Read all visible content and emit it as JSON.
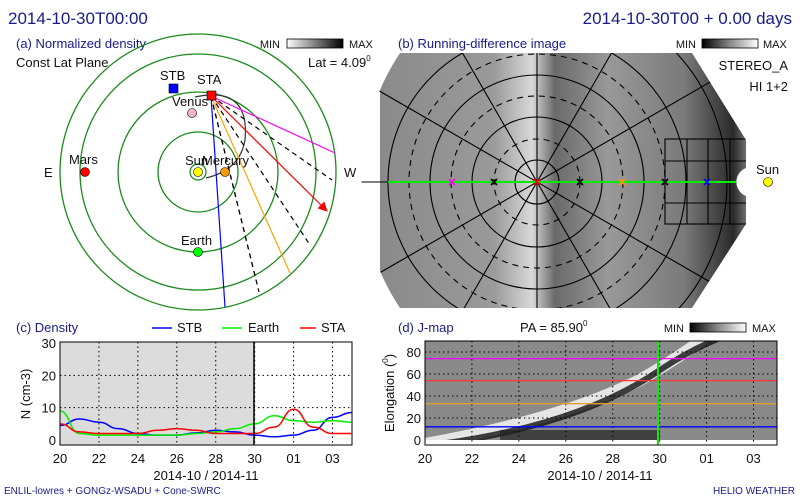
{
  "header": {
    "left_time": "2014-10-30T00:00",
    "right_time": "2014-10-30T00 + 0.00 days"
  },
  "panel_a": {
    "title": "(a) Normalized density",
    "subtitle": "Const Lat Plane",
    "colorbar_min": "MIN",
    "colorbar_max": "MAX",
    "lat_label": "Lat = 4.09",
    "lat_sup": "0",
    "east": "E",
    "west": "W",
    "bodies": {
      "stb": "STB",
      "sta": "STA",
      "venus": "Venus",
      "sun": "Sun",
      "mercury": "Mercury",
      "mars": "Mars",
      "earth": "Earth"
    },
    "colors": {
      "orbit": "#1a8a1a",
      "stb": "#0000ff",
      "sta": "#ff0000",
      "venus": "#f4b6c2",
      "sun": "#ffff00",
      "mercury": "#ff9900",
      "mars": "#ff0000",
      "earth": "#00ff00",
      "magenta": "#ff00ff",
      "orange": "#ffa500"
    }
  },
  "panel_b": {
    "title": "(b) Running-difference image",
    "colorbar_min": "MIN",
    "colorbar_max": "MAX",
    "spacecraft": "STEREO_A",
    "instrument": "HI 1+2",
    "sun_label": "Sun"
  },
  "chart_data": [
    {
      "type": "line",
      "title": "(c) Density",
      "ylabel": "N (cm-3)",
      "ylabel_main": "N (cm",
      "ylabel_sup": "-3",
      "ylabel_end": ")",
      "xlabel": "2014-10 / 2014-11",
      "x_tick_labels": [
        "20",
        "22",
        "24",
        "26",
        "28",
        "30",
        "01",
        "03"
      ],
      "y_tick_labels": [
        "0",
        "10",
        "20",
        "30"
      ],
      "ylim": [
        0,
        30
      ],
      "xlim": [
        "2014-10-20",
        "2014-11-04"
      ],
      "grid": true,
      "legend_position": "top",
      "current_time": "2014-10-30",
      "shaded_past": true,
      "series": [
        {
          "name": "STB",
          "color": "#0000ff",
          "x": [
            "2014-10-20",
            "2014-10-21",
            "2014-10-22",
            "2014-10-23",
            "2014-10-24",
            "2014-10-25",
            "2014-10-26",
            "2014-10-27",
            "2014-10-28",
            "2014-10-29",
            "2014-10-30",
            "2014-10-31",
            "2014-11-01",
            "2014-11-02",
            "2014-11-03",
            "2014-11-04"
          ],
          "y": [
            4.5,
            6.5,
            5.5,
            3.5,
            2,
            1.5,
            1.5,
            2.2,
            3,
            2.5,
            1.5,
            1,
            1.5,
            3,
            7,
            8.5
          ]
        },
        {
          "name": "Earth",
          "color": "#00ee00",
          "x": [
            "2014-10-20",
            "2014-10-21",
            "2014-10-22",
            "2014-10-23",
            "2014-10-24",
            "2014-10-25",
            "2014-10-26",
            "2014-10-27",
            "2014-10-28",
            "2014-10-29",
            "2014-10-30",
            "2014-10-31",
            "2014-11-01",
            "2014-11-02",
            "2014-11-03",
            "2014-11-04"
          ],
          "y": [
            9,
            2,
            1.5,
            1.5,
            1.5,
            1.5,
            1.5,
            2,
            2.5,
            3.5,
            5,
            7.5,
            6,
            5.5,
            6,
            5.5
          ]
        },
        {
          "name": "STA",
          "color": "#ff0000",
          "x": [
            "2014-10-20",
            "2014-10-21",
            "2014-10-22",
            "2014-10-23",
            "2014-10-24",
            "2014-10-25",
            "2014-10-26",
            "2014-10-27",
            "2014-10-28",
            "2014-10-29",
            "2014-10-30",
            "2014-10-31",
            "2014-11-01",
            "2014-11-02",
            "2014-11-03",
            "2014-11-04"
          ],
          "y": [
            5,
            2.5,
            2,
            2,
            2,
            3,
            3.5,
            3,
            2,
            2,
            2,
            4,
            9.5,
            4,
            2,
            2
          ]
        }
      ]
    },
    {
      "type": "heatmap",
      "title": "(d) J-map",
      "pa_label": "PA = 85.90",
      "pa_sup": "0",
      "colorbar_min": "MIN",
      "colorbar_max": "MAX",
      "ylabel": "Elongation (0)",
      "ylabel_main": "Elongation (",
      "ylabel_sup": "0",
      "ylabel_end": ")",
      "xlabel": "2014-10 / 2014-11",
      "x_tick_labels": [
        "20",
        "22",
        "24",
        "26",
        "28",
        "30",
        "01",
        "03"
      ],
      "y_tick_labels": [
        "0",
        "20",
        "40",
        "60",
        "80"
      ],
      "ylim": [
        0,
        90
      ],
      "xlim": [
        "2014-10-20",
        "2014-11-04"
      ],
      "grid": true,
      "current_time": "2014-10-30",
      "reference_lines": [
        {
          "color": "#ff00ff",
          "elongation": 74
        },
        {
          "color": "#ff3333",
          "elongation": 54
        },
        {
          "color": "#e0a030",
          "elongation": 33
        },
        {
          "color": "#0000ff",
          "elongation": 12
        }
      ]
    }
  ],
  "footer": {
    "left": "ENLIL-lowres + GONGz-WSADU + Cone-SWRC",
    "right": "HELIO  WEATHER"
  }
}
